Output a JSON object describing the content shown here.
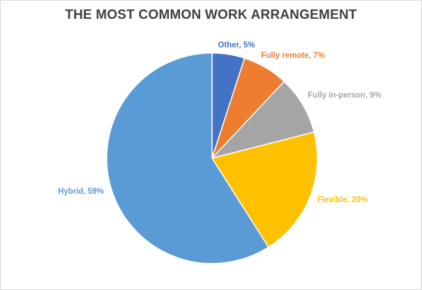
{
  "chart_data": {
    "type": "pie",
    "title": "THE MOST COMMON WORK ARRANGEMENT",
    "slices": [
      {
        "label": "Other",
        "value": 5,
        "display": "Other, 5%",
        "color": "#4472C4"
      },
      {
        "label": "Fully remote",
        "value": 7,
        "display": "Fully remote, 7%",
        "color": "#ED7D31"
      },
      {
        "label": "Fully in-person",
        "value": 9,
        "display": "Fully in-person, 9%",
        "color": "#A5A5A5"
      },
      {
        "label": "Flexible",
        "value": 20,
        "display": "Flexible, 20%",
        "color": "#FFC000"
      },
      {
        "label": "Hybrid",
        "value": 59,
        "display": "Hybrid, 59%",
        "color": "#5B9BD5"
      }
    ],
    "start_angle": "12 o'clock",
    "direction": "clockwise",
    "legend": "none"
  }
}
